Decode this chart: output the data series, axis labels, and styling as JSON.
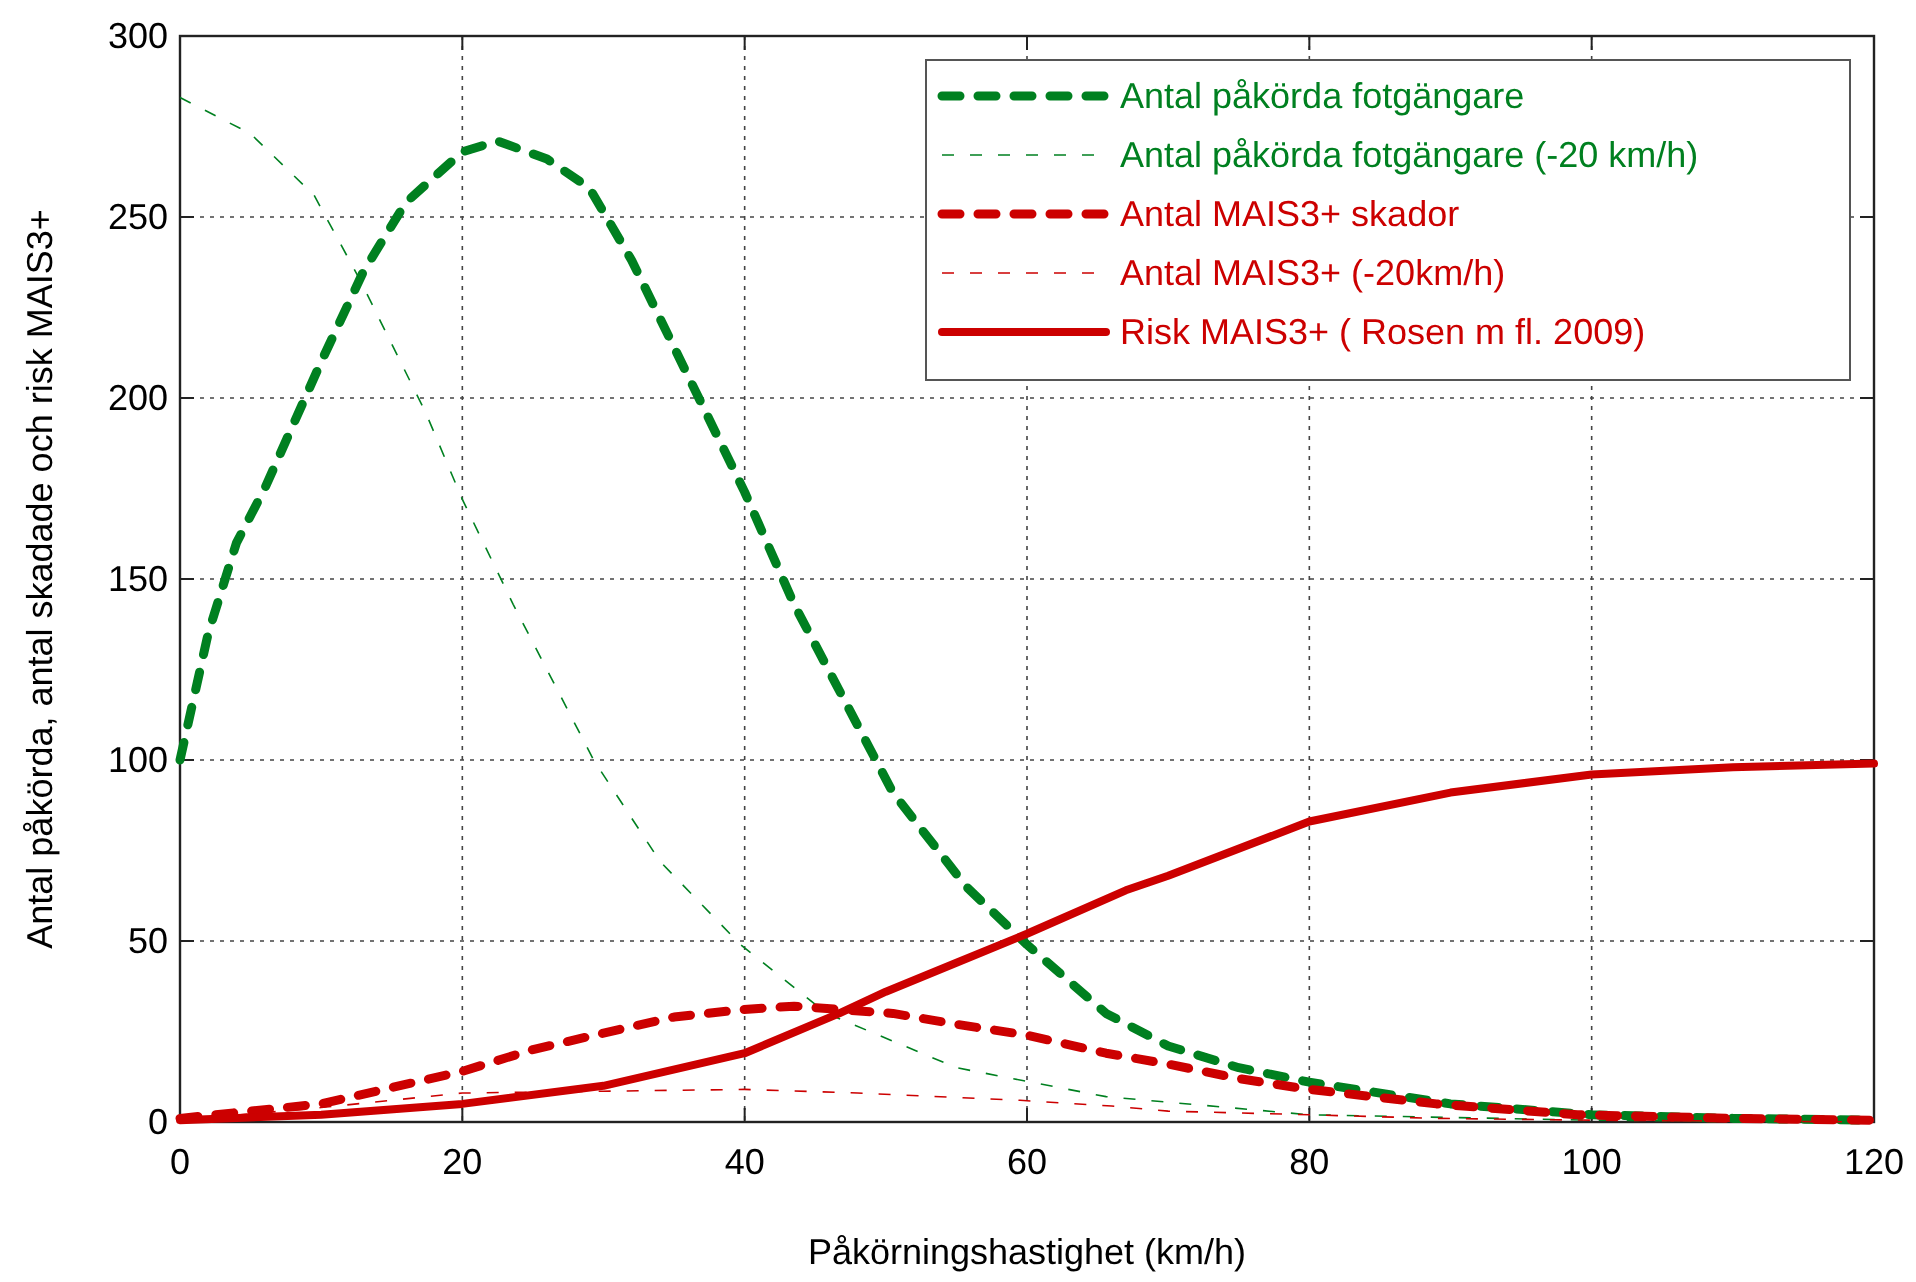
{
  "chart_data": {
    "type": "line",
    "xlabel": "Påkörningshastighet (km/h)",
    "ylabel": "Antal påkörda, antal skadade och risk MAIS3+",
    "xlim": [
      0,
      120
    ],
    "xticks": [
      0,
      20,
      40,
      60,
      80,
      100,
      120
    ],
    "ylim": [
      0,
      300
    ],
    "yticks": [
      0,
      50,
      100,
      150,
      200,
      250,
      300
    ],
    "grid": true,
    "legend": "top right",
    "series": [
      {
        "name": "Antal påkörda fotgängare",
        "color": "#008020",
        "line_style": "dashed",
        "x": [
          0,
          2,
          4,
          6,
          10,
          13,
          16,
          20,
          22.5,
          26,
          29,
          32,
          35,
          40,
          43.5,
          50.5,
          55.7,
          60,
          65.6,
          70,
          75,
          80,
          90,
          100,
          110,
          120
        ],
        "values": [
          100,
          135,
          160,
          175,
          210,
          235,
          254,
          268,
          271,
          266,
          258,
          238,
          214,
          174,
          143,
          91,
          65,
          49,
          30,
          21,
          15,
          11,
          5,
          2,
          1,
          0.5
        ]
      },
      {
        "name": "Antal påkörda fotgängare (-20 km/h)",
        "color": "#008020",
        "line_style": "dotted",
        "x": [
          0,
          5,
          9.5,
          12.7,
          17.4,
          20,
          23.6,
          29.3,
          34,
          39.7,
          45.8,
          55,
          65.6,
          80,
          100,
          120
        ],
        "values": [
          283,
          273,
          256,
          233,
          196,
          172,
          143,
          100,
          72,
          49,
          30,
          15,
          7,
          2,
          0.5,
          0
        ]
      },
      {
        "name": "Antal MAIS3+ skador",
        "color": "#cc0000",
        "line_style": "dashed",
        "x": [
          0,
          10,
          20,
          25,
          31.6,
          35,
          39.7,
          43.5,
          50.5,
          55,
          60,
          65.6,
          70,
          75,
          80,
          89,
          99,
          110,
          120
        ],
        "values": [
          1,
          5,
          14,
          20,
          26,
          29,
          31,
          32,
          30,
          27,
          24,
          19,
          16,
          12,
          9,
          5,
          2,
          1,
          0.5
        ]
      },
      {
        "name": "Antal MAIS3+ (-20km/h)",
        "color": "#cc0000",
        "line_style": "dotted",
        "x": [
          0,
          10,
          20,
          30,
          40,
          48,
          59.5,
          66,
          70,
          80,
          89,
          100,
          120
        ],
        "values": [
          0.5,
          4,
          8,
          8.5,
          9,
          8,
          6,
          4.4,
          3,
          2,
          1,
          0.5,
          0
        ]
      },
      {
        "name": "Risk MAIS3+ ( Rosen m fl. 2009)",
        "color": "#cc0000",
        "line_style": "solid",
        "x": [
          0,
          10,
          20,
          30,
          40,
          46.7,
          50,
          55,
          60,
          67,
          70,
          80,
          90,
          100,
          110,
          120
        ],
        "values": [
          0.5,
          2,
          5,
          10,
          19,
          30,
          36,
          44,
          52,
          64,
          68,
          83,
          91,
          96,
          98,
          99
        ]
      }
    ]
  }
}
